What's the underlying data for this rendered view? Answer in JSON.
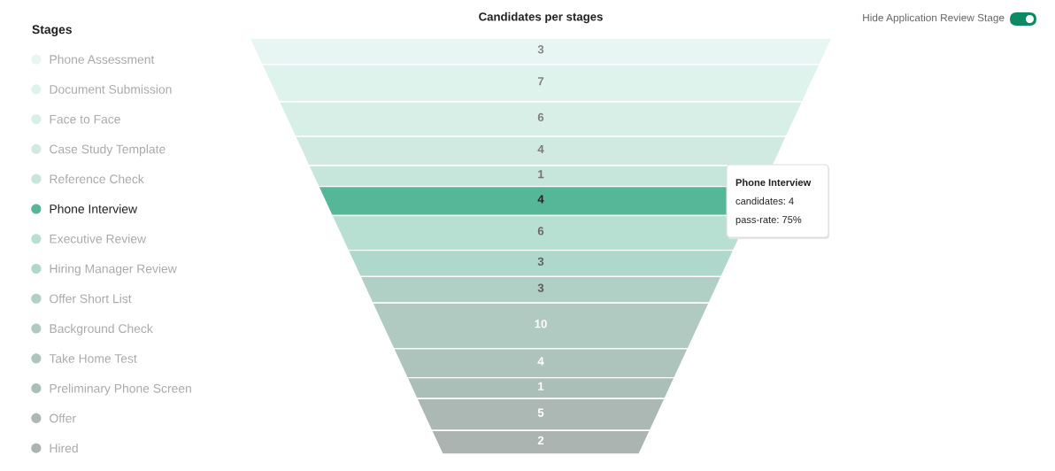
{
  "chart_data": {
    "type": "other",
    "title": "Candidates per stages",
    "legend_title": "Stages",
    "categories": [
      "Phone Assessment",
      "Document Submission",
      "Face to Face",
      "Case Study Template",
      "Reference Check",
      "Phone Interview",
      "Executive Review",
      "Hiring Manager Review",
      "Offer Short List",
      "Background Check",
      "Take Home Test",
      "Preliminary Phone Screen",
      "Offer",
      "Hired"
    ],
    "values": [
      3,
      7,
      6,
      4,
      1,
      4,
      6,
      3,
      3,
      10,
      4,
      1,
      5,
      2
    ],
    "colors": [
      "#e7f6f2",
      "#dff3ed",
      "#d8efe8",
      "#d0eae2",
      "#c6e6dc",
      "#55b797",
      "#b7dfd2",
      "#afd8cc",
      "#b0d0c5",
      "#b0cac1",
      "#adc4bc",
      "#abbfb9",
      "#acb8b4",
      "#abb4b1"
    ],
    "data_labels": true,
    "annotations": [
      {
        "text": "Phone Interview\ncandidates: 4\npass-rate: 75%",
        "x": "Phone Interview"
      },
      "Hide Application Review Stage"
    ]
  }
}
